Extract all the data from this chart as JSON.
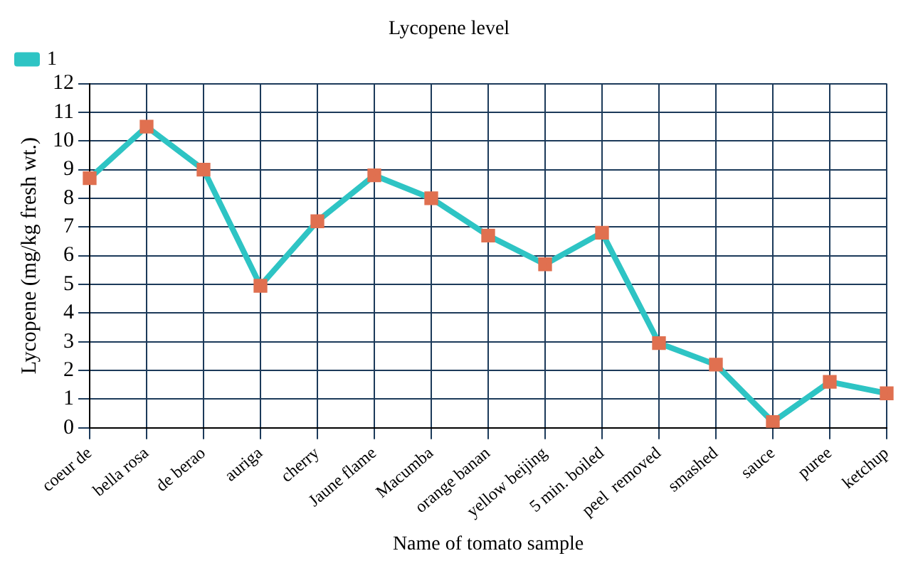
{
  "chart_data": {
    "type": "line",
    "title": "Lycopene level",
    "xlabel": "Name of tomato sample",
    "ylabel": "Lycopene (mg/kg fresh wt.)",
    "categories": [
      "coeur de",
      "bella rosa",
      "de berao",
      "auriga",
      "cherry",
      "Jaune flame",
      "Macumba",
      "orange banan",
      "yellow beijing",
      "5 min. boiled",
      "peel  removed",
      "smashed",
      "sauce",
      "puree",
      "ketchup"
    ],
    "series": [
      {
        "name": "1",
        "color": "#2ec4c4",
        "values": [
          8.7,
          10.5,
          9.0,
          4.95,
          7.2,
          8.8,
          8.0,
          6.7,
          5.7,
          6.8,
          2.95,
          2.2,
          0.2,
          1.6,
          1.2
        ]
      }
    ],
    "ylim": [
      0,
      12
    ],
    "yticks": [
      0,
      1,
      2,
      3,
      4,
      5,
      6,
      7,
      8,
      9,
      10,
      11,
      12
    ],
    "grid": true,
    "legend": "top left",
    "marker": "square",
    "line_style": "solid"
  }
}
